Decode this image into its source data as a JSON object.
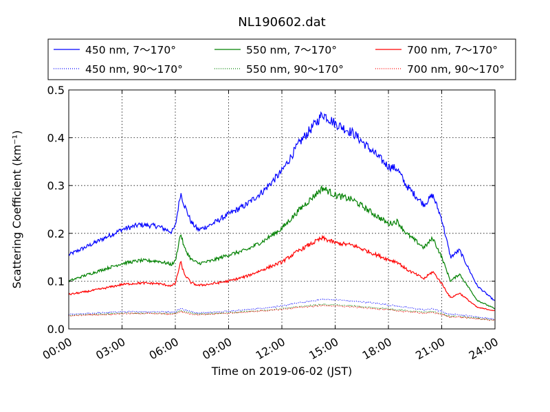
{
  "chart_data": {
    "type": "line",
    "title": "NL190602.dat",
    "xlabel": "Time on 2019-06-02 (JST)",
    "ylabel": "Scattering Coefficient (km⁻¹)",
    "xlim": [
      0,
      24
    ],
    "ylim": [
      0,
      0.5
    ],
    "x_tick_labels": [
      "00:00",
      "03:00",
      "06:00",
      "09:00",
      "12:00",
      "15:00",
      "18:00",
      "21:00",
      "24:00"
    ],
    "y_tick_labels": [
      "0.0",
      "0.1",
      "0.2",
      "0.3",
      "0.4",
      "0.5"
    ],
    "grid": true,
    "legend_placement": "top",
    "x": [
      0,
      1,
      2,
      3,
      4,
      5,
      5.8,
      6,
      6.3,
      6.5,
      6.9,
      7.3,
      8,
      9,
      10,
      11,
      12,
      13,
      14,
      14.3,
      15,
      16,
      17,
      18,
      18.5,
      19,
      20,
      20.5,
      21,
      21.5,
      22,
      23,
      24
    ],
    "series": [
      {
        "name": "450 nm, 7～170°",
        "color": "#0000ff",
        "style": "solid",
        "values": [
          0.155,
          0.172,
          0.19,
          0.208,
          0.218,
          0.215,
          0.203,
          0.215,
          0.285,
          0.26,
          0.223,
          0.207,
          0.218,
          0.24,
          0.26,
          0.29,
          0.33,
          0.39,
          0.435,
          0.45,
          0.43,
          0.41,
          0.375,
          0.34,
          0.335,
          0.3,
          0.26,
          0.28,
          0.23,
          0.15,
          0.165,
          0.09,
          0.058
        ]
      },
      {
        "name": "450 nm, 90～170°",
        "color": "#0000ff",
        "style": "dotted",
        "values": [
          0.03,
          0.032,
          0.034,
          0.036,
          0.036,
          0.036,
          0.035,
          0.036,
          0.043,
          0.04,
          0.036,
          0.034,
          0.035,
          0.037,
          0.04,
          0.044,
          0.048,
          0.055,
          0.06,
          0.062,
          0.061,
          0.058,
          0.055,
          0.05,
          0.048,
          0.045,
          0.04,
          0.042,
          0.036,
          0.03,
          0.03,
          0.025,
          0.02
        ]
      },
      {
        "name": "550 nm, 7～170°",
        "color": "#008000",
        "style": "solid",
        "values": [
          0.1,
          0.113,
          0.125,
          0.137,
          0.143,
          0.142,
          0.135,
          0.142,
          0.2,
          0.17,
          0.145,
          0.137,
          0.142,
          0.155,
          0.165,
          0.185,
          0.21,
          0.25,
          0.285,
          0.295,
          0.28,
          0.27,
          0.245,
          0.22,
          0.225,
          0.2,
          0.17,
          0.19,
          0.15,
          0.1,
          0.115,
          0.06,
          0.042
        ]
      },
      {
        "name": "550 nm, 90～170°",
        "color": "#008000",
        "style": "dotted",
        "values": [
          0.028,
          0.03,
          0.031,
          0.033,
          0.033,
          0.033,
          0.032,
          0.033,
          0.038,
          0.036,
          0.033,
          0.031,
          0.032,
          0.034,
          0.036,
          0.039,
          0.042,
          0.047,
          0.05,
          0.051,
          0.05,
          0.048,
          0.045,
          0.042,
          0.04,
          0.038,
          0.035,
          0.036,
          0.031,
          0.026,
          0.026,
          0.022,
          0.018
        ]
      },
      {
        "name": "700 nm, 7～170°",
        "color": "#ff0000",
        "style": "solid",
        "values": [
          0.072,
          0.078,
          0.085,
          0.093,
          0.096,
          0.095,
          0.09,
          0.095,
          0.14,
          0.115,
          0.096,
          0.091,
          0.094,
          0.1,
          0.11,
          0.125,
          0.14,
          0.165,
          0.185,
          0.19,
          0.18,
          0.175,
          0.16,
          0.145,
          0.14,
          0.125,
          0.105,
          0.12,
          0.095,
          0.065,
          0.075,
          0.045,
          0.038
        ]
      },
      {
        "name": "700 nm, 90～170°",
        "color": "#ff0000",
        "style": "dotted",
        "values": [
          0.027,
          0.029,
          0.03,
          0.032,
          0.032,
          0.032,
          0.031,
          0.032,
          0.036,
          0.034,
          0.031,
          0.03,
          0.031,
          0.033,
          0.035,
          0.038,
          0.041,
          0.045,
          0.048,
          0.049,
          0.048,
          0.046,
          0.043,
          0.04,
          0.038,
          0.036,
          0.033,
          0.034,
          0.03,
          0.025,
          0.025,
          0.021,
          0.018
        ]
      }
    ]
  }
}
